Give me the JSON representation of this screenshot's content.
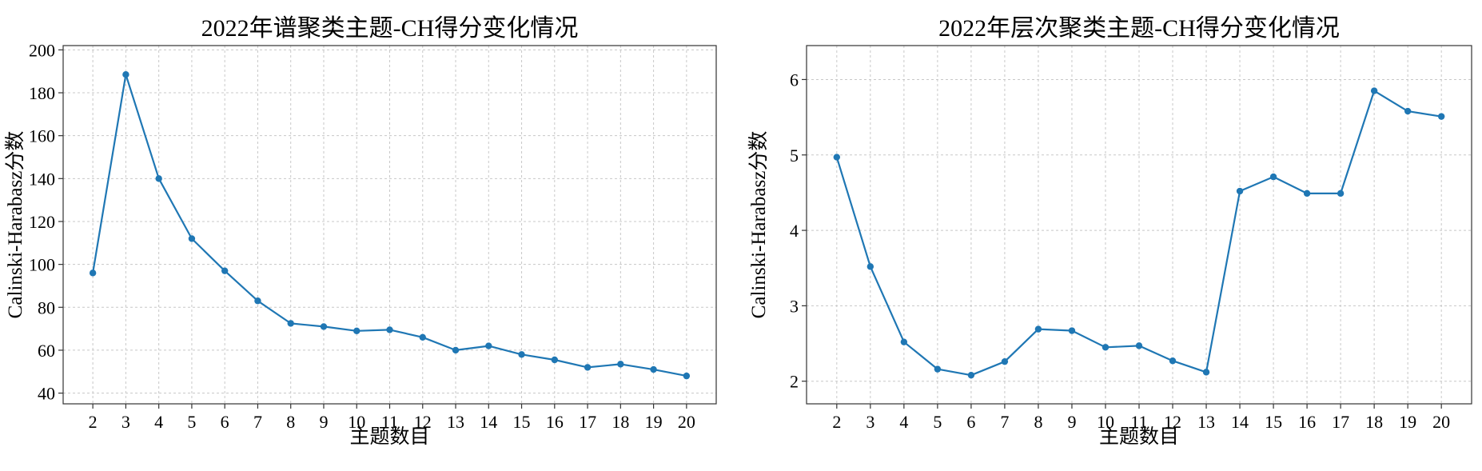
{
  "chart_data": [
    {
      "type": "line",
      "title": "2022年谱聚类主题-CH得分变化情况",
      "xlabel": "主题数目",
      "ylabel": "Calinski-Harabasz分数",
      "x": [
        2,
        3,
        4,
        5,
        6,
        7,
        8,
        9,
        10,
        11,
        12,
        13,
        14,
        15,
        16,
        17,
        18,
        19,
        20
      ],
      "series": [
        {
          "values": [
            96,
            188.5,
            140,
            112,
            97,
            83,
            72.5,
            71,
            69,
            69.5,
            66,
            60,
            62,
            58,
            55.5,
            52,
            53.5,
            51,
            48
          ],
          "color": "#1f77b4"
        }
      ],
      "ylim": [
        35,
        202
      ],
      "yticks": [
        40,
        60,
        80,
        100,
        120,
        140,
        160,
        180,
        200
      ],
      "xlim": [
        1.1,
        20.9
      ],
      "grid": true,
      "marker": "circle"
    },
    {
      "type": "line",
      "title": "2022年层次聚类主题-CH得分变化情况",
      "xlabel": "主题数目",
      "ylabel": "Calinski-Harabasz分数",
      "x": [
        2,
        3,
        4,
        5,
        6,
        7,
        8,
        9,
        10,
        11,
        12,
        13,
        14,
        15,
        16,
        17,
        18,
        19,
        20
      ],
      "series": [
        {
          "values": [
            4.97,
            3.52,
            2.52,
            2.16,
            2.08,
            2.26,
            2.69,
            2.67,
            2.45,
            2.47,
            2.27,
            2.12,
            4.52,
            4.71,
            4.49,
            4.49,
            5.85,
            5.58,
            5.51
          ],
          "color": "#1f77b4"
        }
      ],
      "ylim": [
        1.7,
        6.45
      ],
      "yticks": [
        2,
        3,
        4,
        5,
        6
      ],
      "xlim": [
        1.1,
        20.9
      ],
      "grid": true,
      "marker": "circle"
    }
  ]
}
